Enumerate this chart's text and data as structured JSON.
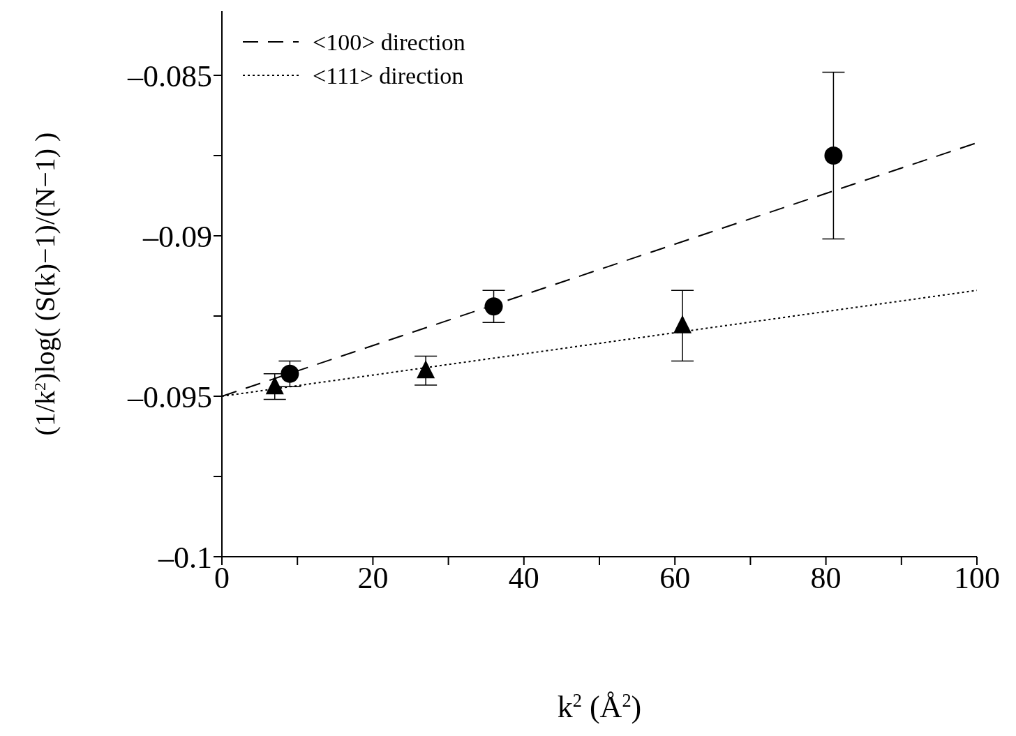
{
  "chart_data": {
    "type": "scatter",
    "xlabel": "k$^{2}$ (Å$^{2}$)",
    "ylabel": "(1/k$^{2}$)log( (S(k)−1)/(N−1) )",
    "xlim": [
      0,
      100
    ],
    "xticks": [
      0,
      {
        "value": 10,
        "label": null
      },
      20,
      {
        "value": 30,
        "label": null
      },
      40,
      {
        "value": 50,
        "label": null
      },
      60,
      {
        "value": 70,
        "label": null
      },
      80,
      {
        "value": 90,
        "label": null
      },
      100
    ],
    "ylim": [
      -0.1,
      -0.083
    ],
    "yticks": [
      {
        "value": -0.1,
        "label": "–0.1"
      },
      {
        "value": -0.0975,
        "label": null
      },
      {
        "value": -0.095,
        "label": "–0.095"
      },
      {
        "value": -0.0925,
        "label": null
      },
      {
        "value": -0.09,
        "label": "–0.09"
      },
      {
        "value": -0.0875,
        "label": null
      },
      {
        "value": -0.085,
        "label": "–0.085"
      }
    ],
    "grid": false,
    "legend": "top left",
    "series": [
      {
        "name": "<100> direction",
        "type": "line",
        "line_style": "dashed",
        "marker": "none",
        "color": "#000000",
        "x": [
          0,
          100
        ],
        "values": [
          -0.095,
          -0.0871
        ]
      },
      {
        "name": "<111> direction",
        "type": "line",
        "line_style": "dotted",
        "marker": "none",
        "color": "#000000",
        "x": [
          0,
          100
        ],
        "values": [
          -0.095,
          -0.0917
        ]
      },
      {
        "marker": "circle",
        "color": "#000000",
        "x": [
          9,
          36,
          81
        ],
        "values": [
          -0.0943,
          -0.0922,
          -0.0875
        ],
        "errors": [
          0.0004,
          0.0005,
          0.0026
        ]
      },
      {
        "marker": "triangle",
        "color": "#000000",
        "x": [
          7,
          27,
          61
        ],
        "values": [
          -0.0947,
          -0.0942,
          -0.0928
        ],
        "errors": [
          0.0004,
          0.00045,
          0.0011
        ]
      }
    ]
  }
}
